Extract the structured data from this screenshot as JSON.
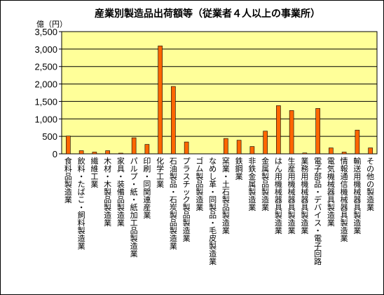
{
  "chart_data": {
    "type": "bar",
    "title": "産業別製造品出荷額等（従業者４人以上の事業所）",
    "unit_label": "億（円）",
    "ylim": [
      0,
      3500
    ],
    "yticks": [
      "0",
      "500",
      "1,000",
      "1,500",
      "2,000",
      "2,500",
      "3,000",
      "3,500"
    ],
    "grid": true,
    "categories": [
      "食料品製造業",
      "飲料・たばこ・飼料製造業",
      "繊維工業",
      "木材・木製品製造業",
      "家具・装備品製造業",
      "パルプ・紙・紙加工品製造業",
      "印刷・同関連産業",
      "化学工業",
      "石油製品・石炭製品製造業",
      "プラスチック製品製造業",
      "ゴム製品製造業",
      "なめし革・同製品・毛皮製造業",
      "窯業・土石製品製造業",
      "鉄鋼業",
      "非鉄金属製造業",
      "金属製品製造業",
      "はん用機械器具製造業",
      "生産用機械器具製造業",
      "業務用機械器具製造業",
      "電子部品・デバイス・電子回路",
      "電気機械器具製造業",
      "情報通信機械器具製造業",
      "輸送用機械器具製造業",
      "その他の製造業"
    ],
    "values": [
      510,
      90,
      50,
      90,
      20,
      460,
      270,
      3090,
      1930,
      340,
      0,
      0,
      440,
      390,
      210,
      650,
      1380,
      1240,
      25,
      1300,
      170,
      50,
      680,
      170
    ],
    "colors": {
      "plot_bg": "#ffff99",
      "bar": "#ff6600",
      "bar_border": "#000000",
      "grid": "#000000"
    }
  }
}
